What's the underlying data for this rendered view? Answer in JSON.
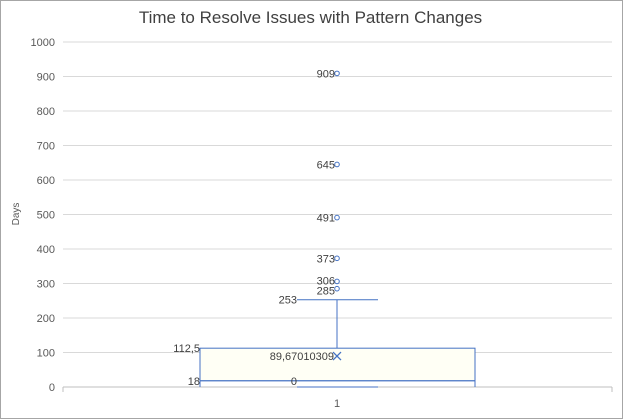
{
  "chart_data": {
    "type": "box",
    "title": "Time to Resolve Issues with Pattern Changes",
    "ylabel": "Days",
    "xlabel": "",
    "ylim": [
      0,
      1000
    ],
    "yticks": [
      "0",
      "100",
      "200",
      "300",
      "400",
      "500",
      "600",
      "700",
      "800",
      "900",
      "1000"
    ],
    "categories": [
      "1"
    ],
    "box": {
      "whisker_low": 0,
      "q1": 18,
      "median": 18,
      "q3": 112.5,
      "whisker_high": 253,
      "mean": 89.67010309,
      "outliers": [
        285,
        306,
        373,
        491,
        645,
        909
      ]
    },
    "labels": {
      "q1": "18",
      "min": "0",
      "q3": "112,5",
      "mean": "89,67010309",
      "max": "253",
      "outliers": [
        "285",
        "306",
        "373",
        "491",
        "645",
        "909"
      ]
    },
    "colors": {
      "box": "#4472c4",
      "grid": "#d9d9d9",
      "axis": "#bfbfbf"
    },
    "grid": true
  }
}
